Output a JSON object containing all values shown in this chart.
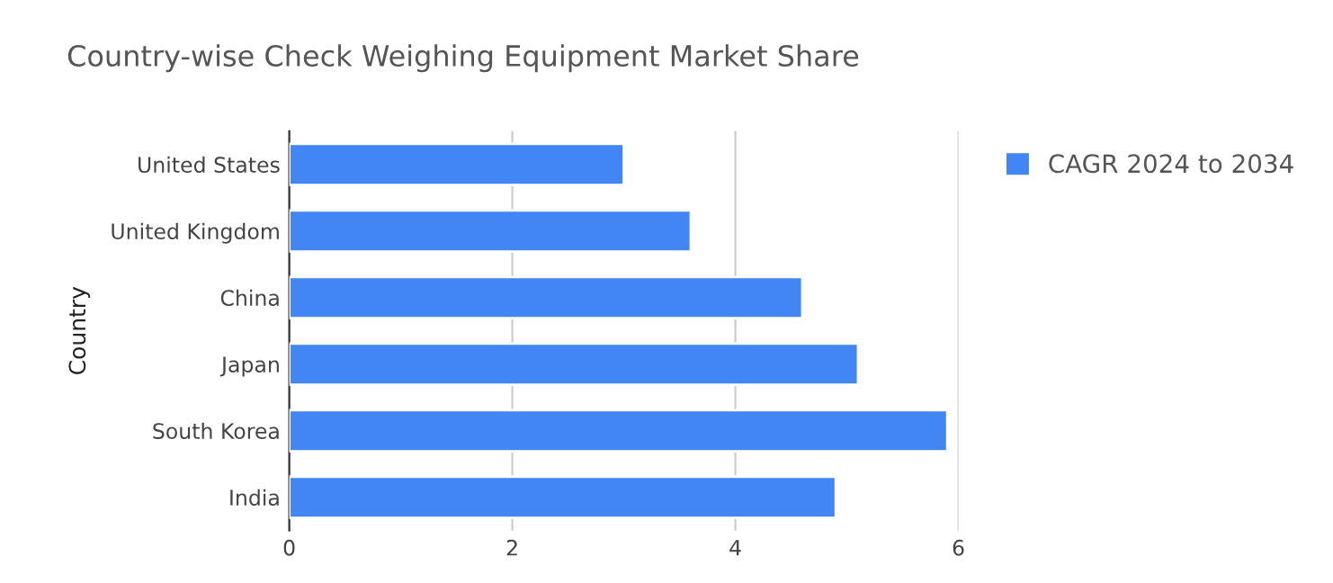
{
  "chart_data": {
    "type": "bar",
    "orientation": "horizontal",
    "title": "Country-wise Check Weighing Equipment Market Share",
    "ylabel": "Country",
    "categories": [
      "United States",
      "United Kingdom",
      "China",
      "Japan",
      "South Korea",
      "India"
    ],
    "series": [
      {
        "name": "CAGR 2024 to 2034",
        "color": "#4285f4",
        "values": [
          3.0,
          3.6,
          4.6,
          5.1,
          5.9,
          4.9
        ]
      }
    ],
    "xlim": [
      0,
      6
    ],
    "xticks": [
      0,
      2,
      4,
      6
    ],
    "grid": "x",
    "legend": "top right"
  }
}
